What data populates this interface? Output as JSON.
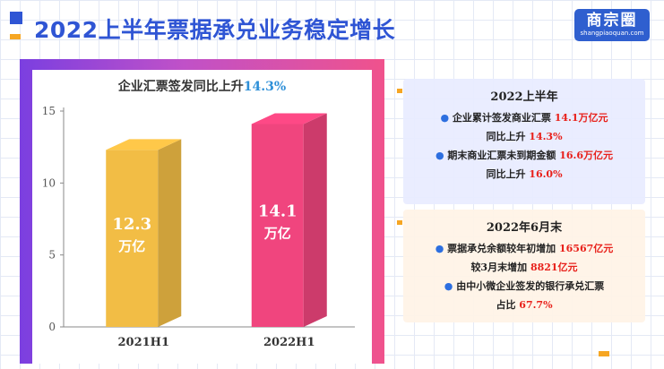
{
  "page_title": "2022上半年票据承兑业务稳定增长",
  "logo": {
    "name": "商宗圈",
    "url": "shangpiaoquan.com"
  },
  "chart_data": {
    "type": "bar",
    "title": "企业汇票签发同比上升",
    "title_highlight": "14.3%",
    "categories": [
      "2021H1",
      "2022H1"
    ],
    "values": [
      12.3,
      14.1
    ],
    "bar_labels": [
      {
        "value": "12.3",
        "unit": "万亿"
      },
      {
        "value": "14.1",
        "unit": "万亿"
      }
    ],
    "ylim": [
      0,
      15
    ],
    "yticks": [
      0,
      5,
      10,
      15
    ],
    "ylabel": "",
    "xlabel": "",
    "bar_colors": [
      "#f2bd45",
      "#f0457e"
    ],
    "grid": false
  },
  "panel_h1": {
    "heading": "2022上半年",
    "lines": {
      "l1_bullet": "●",
      "l1_text": "企业累计签发商业汇票",
      "l1_value": "14.1万亿元",
      "l2_text": "同比上升",
      "l2_value": "14.3%",
      "l3_bullet": "●",
      "l3_text": "期末商业汇票未到期金额",
      "l3_value": "16.6万亿元",
      "l4_text": "同比上升",
      "l4_value": "16.0%"
    }
  },
  "panel_jun": {
    "heading": "2022年6月末",
    "lines": {
      "l1_bullet": "●",
      "l1_text": "票据承兑余额较年初增加",
      "l1_value": "16567亿元",
      "l2_text": "较3月末增加",
      "l2_value": "8821亿元",
      "l3_bullet": "●",
      "l3_text": "由中小微企业签发的银行承兑汇票",
      "l4_text": "占比",
      "l4_value": "67.7%"
    }
  },
  "colors": {
    "title_blue": "#2f55d4",
    "accent_orange": "#f6a623",
    "value_red": "#e8201a"
  }
}
